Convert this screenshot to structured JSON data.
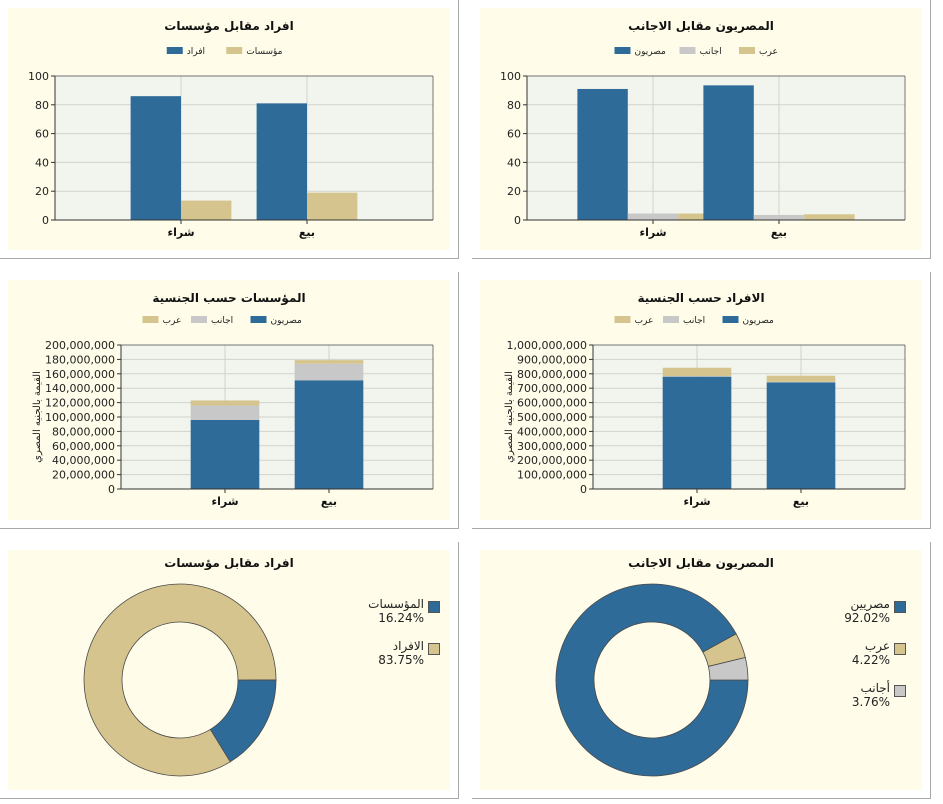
{
  "colors": {
    "egyptian": "#2e6b99",
    "foreign": "#c8c8c8",
    "arab": "#d6c48e",
    "panel_bg": "#fffdea",
    "plot_bg": "#f2f5ee",
    "grid": "#cfd3cb"
  },
  "charts": [
    {
      "type": "bar",
      "title": "افراد مقابل مؤسسات",
      "categories": [
        "شراء",
        "بيع"
      ],
      "legend": [
        "افراد",
        "مؤسسات"
      ],
      "series": [
        {
          "name": "افراد",
          "color": "#2e6b99",
          "values": [
            86,
            81
          ]
        },
        {
          "name": "مؤسسات",
          "color": "#d6c48e",
          "values": [
            13.5,
            19
          ]
        }
      ],
      "ylim": [
        0,
        100
      ],
      "yticks": [
        "0",
        "20",
        "40",
        "60",
        "80",
        "100"
      ],
      "ylabel": ""
    },
    {
      "type": "bar",
      "title": "المصريون مقابل الاجانب",
      "categories": [
        "شراء",
        "بيع"
      ],
      "legend": [
        "مصريون",
        "اجانب",
        "عرب"
      ],
      "series": [
        {
          "name": "مصريون",
          "color": "#2e6b99",
          "values": [
            91,
            93.5
          ]
        },
        {
          "name": "اجانب",
          "color": "#c8c8c8",
          "values": [
            4.5,
            3.5
          ]
        },
        {
          "name": "عرب",
          "color": "#d6c48e",
          "values": [
            4.5,
            4
          ]
        }
      ],
      "ylim": [
        0,
        100
      ],
      "yticks": [
        "0",
        "20",
        "40",
        "60",
        "80",
        "100"
      ],
      "ylabel": ""
    },
    {
      "type": "bar",
      "stacked": true,
      "title": "المؤسسات حسب الجنسية",
      "categories": [
        "شراء",
        "بيع"
      ],
      "legend": [
        "عرب",
        "اجانب",
        "مصريون"
      ],
      "series": [
        {
          "name": "مصريون",
          "color": "#2e6b99",
          "values": [
            96000000,
            151000000
          ]
        },
        {
          "name": "اجانب",
          "color": "#c8c8c8",
          "values": [
            20000000,
            23000000
          ]
        },
        {
          "name": "عرب",
          "color": "#d6c48e",
          "values": [
            7000000,
            5000000
          ]
        }
      ],
      "ylim": [
        0,
        200000000
      ],
      "yticks": [
        "0",
        "20,000,000",
        "40,000,000",
        "60,000,000",
        "80,000,000",
        "100,000,000",
        "120,000,000",
        "140,000,000",
        "160,000,000",
        "180,000,000",
        "200,000,000"
      ],
      "ylabel": "القيمة بالجنيه المصري"
    },
    {
      "type": "bar",
      "stacked": true,
      "title": "الافراد حسب الجنسية",
      "categories": [
        "شراء",
        "بيع"
      ],
      "legend": [
        "عرب",
        "اجانب",
        "مصريون"
      ],
      "series": [
        {
          "name": "مصريون",
          "color": "#2e6b99",
          "values": [
            780000000,
            740000000
          ]
        },
        {
          "name": "اجانب",
          "color": "#c8c8c8",
          "values": [
            5000000,
            4000000
          ]
        },
        {
          "name": "عرب",
          "color": "#d6c48e",
          "values": [
            57000000,
            43000000
          ]
        }
      ],
      "ylim": [
        0,
        1000000000
      ],
      "yticks": [
        "0",
        "100,000,000",
        "200,000,000",
        "300,000,000",
        "400,000,000",
        "500,000,000",
        "600,000,000",
        "700,000,000",
        "800,000,000",
        "900,000,000",
        "1,000,000,000"
      ],
      "ylabel": "القيمة بالجنيه المصري"
    },
    {
      "type": "pie",
      "title": "افراد مقابل مؤسسات",
      "slices": [
        {
          "label": "المؤسسات",
          "pct": "16.24%",
          "value": 16.24,
          "color": "#2e6b99"
        },
        {
          "label": "الافراد",
          "pct": "83.75%",
          "value": 83.75,
          "color": "#d6c48e"
        }
      ]
    },
    {
      "type": "pie",
      "title": "المصريون مقابل الاجانب",
      "slices": [
        {
          "label": "مصريين",
          "pct": "92.02%",
          "value": 92.02,
          "color": "#2e6b99"
        },
        {
          "label": "عرب",
          "pct": "4.22%",
          "value": 4.22,
          "color": "#d6c48e"
        },
        {
          "label": "أجانب",
          "pct": "3.76%",
          "value": 3.76,
          "color": "#c8c8c8"
        }
      ]
    }
  ]
}
